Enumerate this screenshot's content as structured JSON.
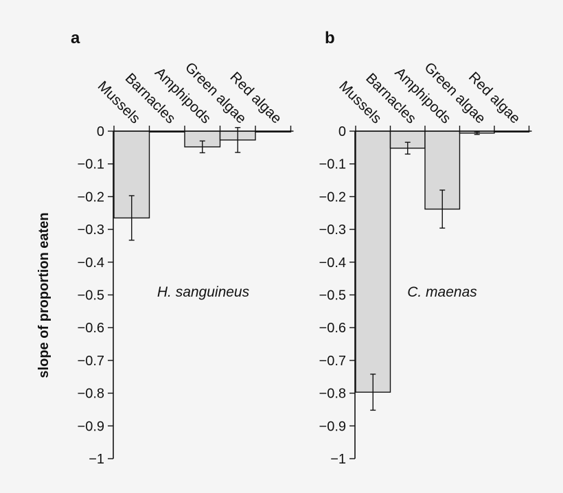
{
  "chart_data": {
    "type": "bar",
    "ylabel": "slope of proportion eaten",
    "ylim": [
      -1,
      0
    ],
    "yticks": [
      0,
      -0.1,
      -0.2,
      -0.3,
      -0.4,
      -0.5,
      -0.6,
      -0.7,
      -0.8,
      -0.9,
      -1
    ],
    "ytick_labels": [
      "0",
      "−0.1",
      "−0.2",
      "−0.3",
      "−0.4",
      "−0.5",
      "−0.6",
      "−0.7",
      "−0.8",
      "−0.9",
      "−1"
    ],
    "categories": [
      "Mussels",
      "Barnacles",
      "Amphipods",
      "Green algae",
      "Red algae"
    ],
    "colors": {
      "bar_fill": "#d9d9d9",
      "stroke": "#111111",
      "background": "#f5f5f5"
    },
    "panels": [
      {
        "letter": "a",
        "species": "H. sanguineus",
        "values": [
          -0.265,
          -0.002,
          -0.048,
          -0.027,
          0.0
        ],
        "errors": [
          0.068,
          0.0,
          0.018,
          0.038,
          0.0
        ]
      },
      {
        "letter": "b",
        "species": "C. maenas",
        "values": [
          -0.797,
          -0.052,
          -0.238,
          -0.006,
          0.0
        ],
        "errors": [
          0.055,
          0.018,
          0.058,
          0.004,
          0.0
        ]
      }
    ]
  }
}
